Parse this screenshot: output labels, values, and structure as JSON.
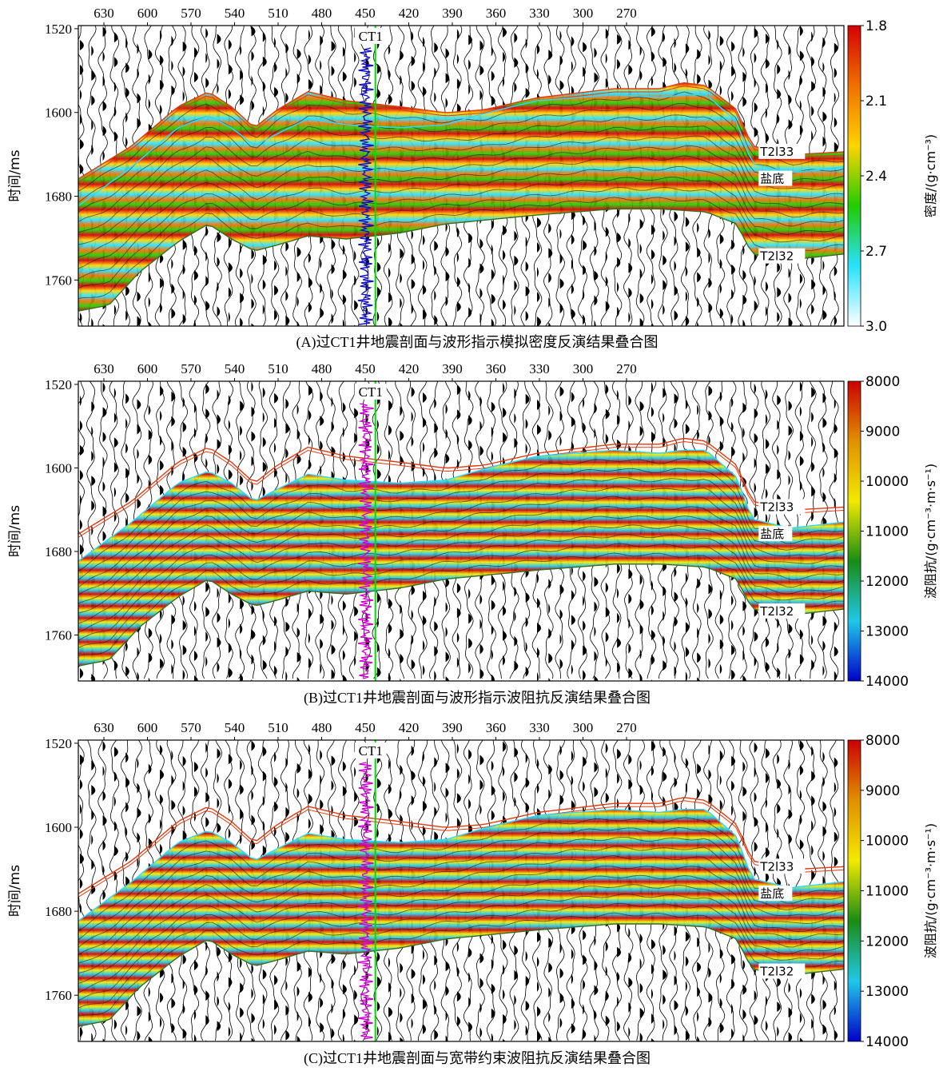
{
  "chart_data": [
    {
      "type": "heatmap",
      "caption": "(A)过CT1井地震剖面与波形指示模拟密度反演结果叠合图",
      "xticks": [
        "630",
        "600",
        "570",
        "540",
        "510",
        "480",
        "450",
        "420",
        "390",
        "360",
        "330",
        "300",
        "270"
      ],
      "x_values": [
        630,
        600,
        570,
        540,
        510,
        480,
        450,
        420,
        390,
        360,
        330,
        300,
        270
      ],
      "ylabel": "时间/ms",
      "yticks": [
        "1520",
        "1600",
        "1680",
        "1760"
      ],
      "y_values": [
        1520,
        1600,
        1680,
        1760
      ],
      "ylim": [
        1517,
        1804
      ],
      "well": "CT1",
      "well_x": 443,
      "horizons": [
        "T2l33",
        "盐底",
        "T2l32"
      ],
      "colorbar": {
        "label": "密度/(g·cm⁻³)",
        "ticks": [
          "1.8",
          "2.1",
          "2.4",
          "2.7",
          "3.0"
        ],
        "values": [
          1.8,
          2.1,
          2.4,
          2.7,
          3.0
        ],
        "colors": [
          "#d40000",
          "#f07000",
          "#ffd400",
          "#22cc00",
          "#28e2ff",
          "#ffffff"
        ],
        "log_color": "#1010c8"
      }
    },
    {
      "type": "heatmap",
      "caption": "(B)过CT1井地震剖面与波形指示波阻抗反演结果叠合图",
      "xticks": [
        "630",
        "600",
        "570",
        "540",
        "510",
        "480",
        "450",
        "420",
        "390",
        "360",
        "330",
        "300",
        "270"
      ],
      "x_values": [
        630,
        600,
        570,
        540,
        510,
        480,
        450,
        420,
        390,
        360,
        330,
        300,
        270
      ],
      "ylabel": "时间/ms",
      "yticks": [
        "1520",
        "1600",
        "1680",
        "1760"
      ],
      "y_values": [
        1520,
        1600,
        1680,
        1760
      ],
      "ylim": [
        1517,
        1804
      ],
      "well": "CT1",
      "well_x": 443,
      "horizons": [
        "T2l33",
        "盐底",
        "T2l32"
      ],
      "colorbar": {
        "label": "波阻抗/(g·cm⁻³·m·s⁻¹)",
        "ticks": [
          "8000",
          "9000",
          "10000",
          "11000",
          "12000",
          "13000",
          "14000"
        ],
        "values": [
          8000,
          9000,
          10000,
          11000,
          12000,
          13000,
          14000
        ],
        "colors": [
          "#cc0000",
          "#e09000",
          "#f2ea00",
          "#1a8c14",
          "#20c8e8",
          "#0000c8"
        ],
        "log_color": "#d000d0"
      }
    },
    {
      "type": "heatmap",
      "caption": "(C)过CT1井地震剖面与宽带约束波阻抗反演结果叠合图",
      "xticks": [
        "630",
        "600",
        "570",
        "540",
        "510",
        "480",
        "450",
        "420",
        "390",
        "360",
        "330",
        "300",
        "270"
      ],
      "x_values": [
        630,
        600,
        570,
        540,
        510,
        480,
        450,
        420,
        390,
        360,
        330,
        300,
        270
      ],
      "ylabel": "时间/ms",
      "yticks": [
        "1520",
        "1600",
        "1680",
        "1760"
      ],
      "y_values": [
        1520,
        1600,
        1680,
        1760
      ],
      "ylim": [
        1517,
        1804
      ],
      "well": "CT1",
      "well_x": 443,
      "horizons": [
        "T2l33",
        "盐底",
        "T2l32"
      ],
      "colorbar": {
        "label": "波阻抗/(g·cm⁻³·m·s⁻¹)",
        "ticks": [
          "8000",
          "9000",
          "10000",
          "11000",
          "12000",
          "13000",
          "14000"
        ],
        "values": [
          8000,
          9000,
          10000,
          11000,
          12000,
          13000,
          14000
        ],
        "colors": [
          "#cc0000",
          "#e09000",
          "#f2ea00",
          "#1a8c14",
          "#20c8e8",
          "#0000c8"
        ],
        "log_color": "#d000d0"
      }
    }
  ]
}
